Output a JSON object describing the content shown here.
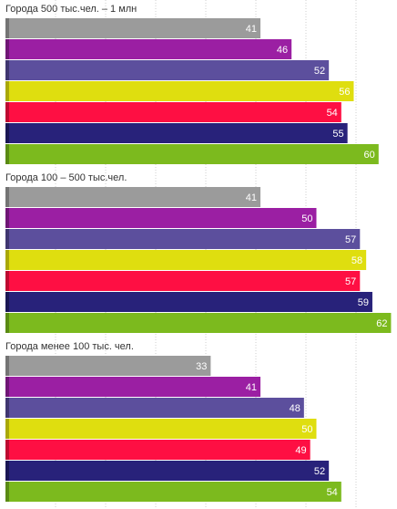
{
  "chart_data": {
    "type": "bar",
    "orientation": "horizontal",
    "value_labels": true,
    "grid": true,
    "groups": [
      {
        "title": "Города 500 тыс.чел. – 1 млн",
        "values": [
          41,
          46,
          52,
          56,
          54,
          55,
          60
        ]
      },
      {
        "title": "Города 100 – 500 тыс.чел.",
        "values": [
          41,
          50,
          57,
          58,
          57,
          59,
          62
        ]
      },
      {
        "title": "Города менее 100 тыс. чел.",
        "values": [
          33,
          41,
          48,
          50,
          49,
          52,
          54
        ]
      }
    ],
    "series_colors": [
      "#9b9b9b",
      "#9b1fa3",
      "#5c4f9d",
      "#dfde0f",
      "#fe0f43",
      "#28227a",
      "#7cba1e"
    ],
    "series_edge_colors": [
      "#747474",
      "#6f1675",
      "#3f3670",
      "#a9a80a",
      "#bd0a31",
      "#1a1654",
      "#5a8a14"
    ],
    "xlim": [
      0,
      63
    ]
  }
}
